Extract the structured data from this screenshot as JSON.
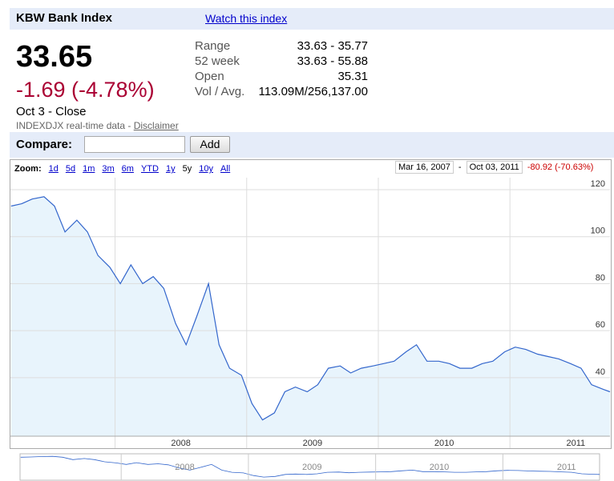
{
  "header": {
    "title": "KBW Bank Index",
    "watch_link": "Watch this index"
  },
  "quote": {
    "price": "33.65",
    "change": "-1.69 (-4.78%)",
    "time": "Oct 3 - Close",
    "source": "INDEXDJX real-time data -",
    "disclaimer": "Disclaimer"
  },
  "stats": [
    [
      "Range",
      "33.63 - 35.77"
    ],
    [
      "52 week",
      "33.63 - 55.88"
    ],
    [
      "Open",
      "35.31"
    ],
    [
      "Vol / Avg.",
      "113.09M/256,137.00"
    ]
  ],
  "compare": {
    "label": "Compare:",
    "button": "Add"
  },
  "chart_data": {
    "type": "line",
    "zoom_label": "Zoom:",
    "zoom_options": [
      "1d",
      "5d",
      "1m",
      "3m",
      "6m",
      "YTD",
      "1y",
      "5y",
      "10y",
      "All"
    ],
    "range_start": "Mar 16, 2007",
    "range_separator": "-",
    "range_end": "Oct 03, 2011",
    "range_change": "-80.92 (-70.63%)",
    "x": [
      2007.21,
      2007.29,
      2007.37,
      2007.46,
      2007.54,
      2007.62,
      2007.71,
      2007.79,
      2007.87,
      2007.96,
      2008.04,
      2008.12,
      2008.21,
      2008.29,
      2008.37,
      2008.46,
      2008.54,
      2008.62,
      2008.71,
      2008.79,
      2008.87,
      2008.96,
      2009.04,
      2009.12,
      2009.21,
      2009.29,
      2009.37,
      2009.46,
      2009.54,
      2009.62,
      2009.71,
      2009.79,
      2009.87,
      2009.96,
      2010.04,
      2010.12,
      2010.21,
      2010.29,
      2010.37,
      2010.46,
      2010.54,
      2010.62,
      2010.71,
      2010.79,
      2010.87,
      2010.96,
      2011.04,
      2011.12,
      2011.21,
      2011.29,
      2011.37,
      2011.46,
      2011.54,
      2011.62,
      2011.71,
      2011.76
    ],
    "series": [
      {
        "color": "#3366cc",
        "values": [
          113,
          114,
          116,
          117,
          113,
          102,
          107,
          102,
          92,
          87,
          80,
          88,
          80,
          83,
          78,
          63,
          54,
          66,
          80,
          54,
          44,
          41,
          29,
          22,
          25,
          34,
          36,
          34,
          37,
          44,
          45,
          42,
          44,
          45,
          46,
          47,
          51,
          54,
          47,
          47,
          46,
          44,
          44,
          46,
          47,
          51,
          53,
          52,
          50,
          49,
          48,
          46,
          44,
          37,
          35,
          34
        ]
      }
    ],
    "xlim": [
      2007.205,
      2011.76
    ],
    "xticks": [
      2008,
      2009,
      2010,
      2011
    ],
    "ylim": [
      15.1,
      125.1
    ],
    "yticks": [
      40,
      60,
      80,
      100,
      120
    ],
    "grid": true
  }
}
